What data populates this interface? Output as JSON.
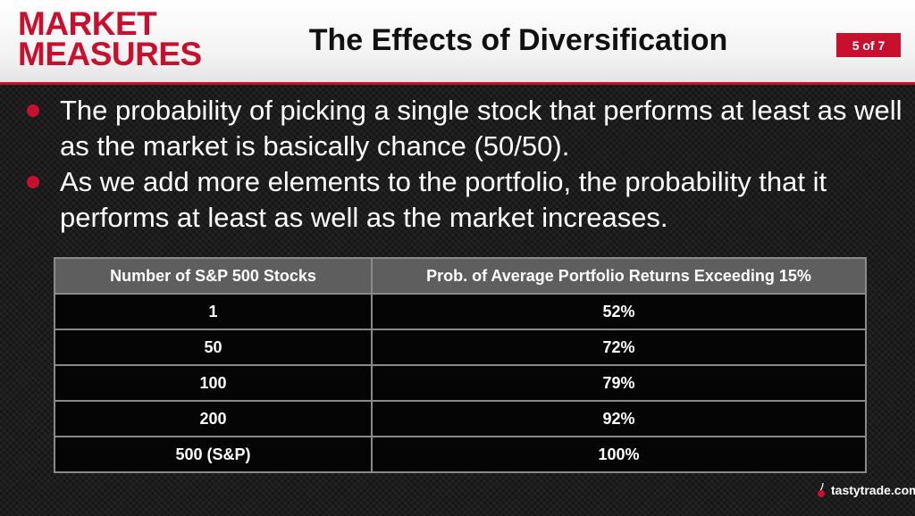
{
  "header": {
    "logo_line1": "MARKET",
    "logo_line2": "MEASURES",
    "title": "The Effects of Diversification",
    "page_indicator": "5 of 7"
  },
  "bullets": [
    "The probability of picking a single stock that performs at least as well as the market is basically chance (50/50).",
    "As we add more elements to the portfolio, the probability that it performs at least as well as the market increases."
  ],
  "table": {
    "headers": [
      "Number of S&P 500 Stocks",
      "Prob. of Average Portfolio Returns Exceeding 15%"
    ],
    "rows": [
      [
        "1",
        "52%"
      ],
      [
        "50",
        "72%"
      ],
      [
        "100",
        "79%"
      ],
      [
        "200",
        "92%"
      ],
      [
        "500 (S&P)",
        "100%"
      ]
    ]
  },
  "footer": {
    "brand": "tastytrade.com",
    "brand_icon": "cherry-icon"
  },
  "colors": {
    "accent": "#c8102e",
    "background": "#1c1c1c",
    "table_header": "#5e5e5e"
  }
}
